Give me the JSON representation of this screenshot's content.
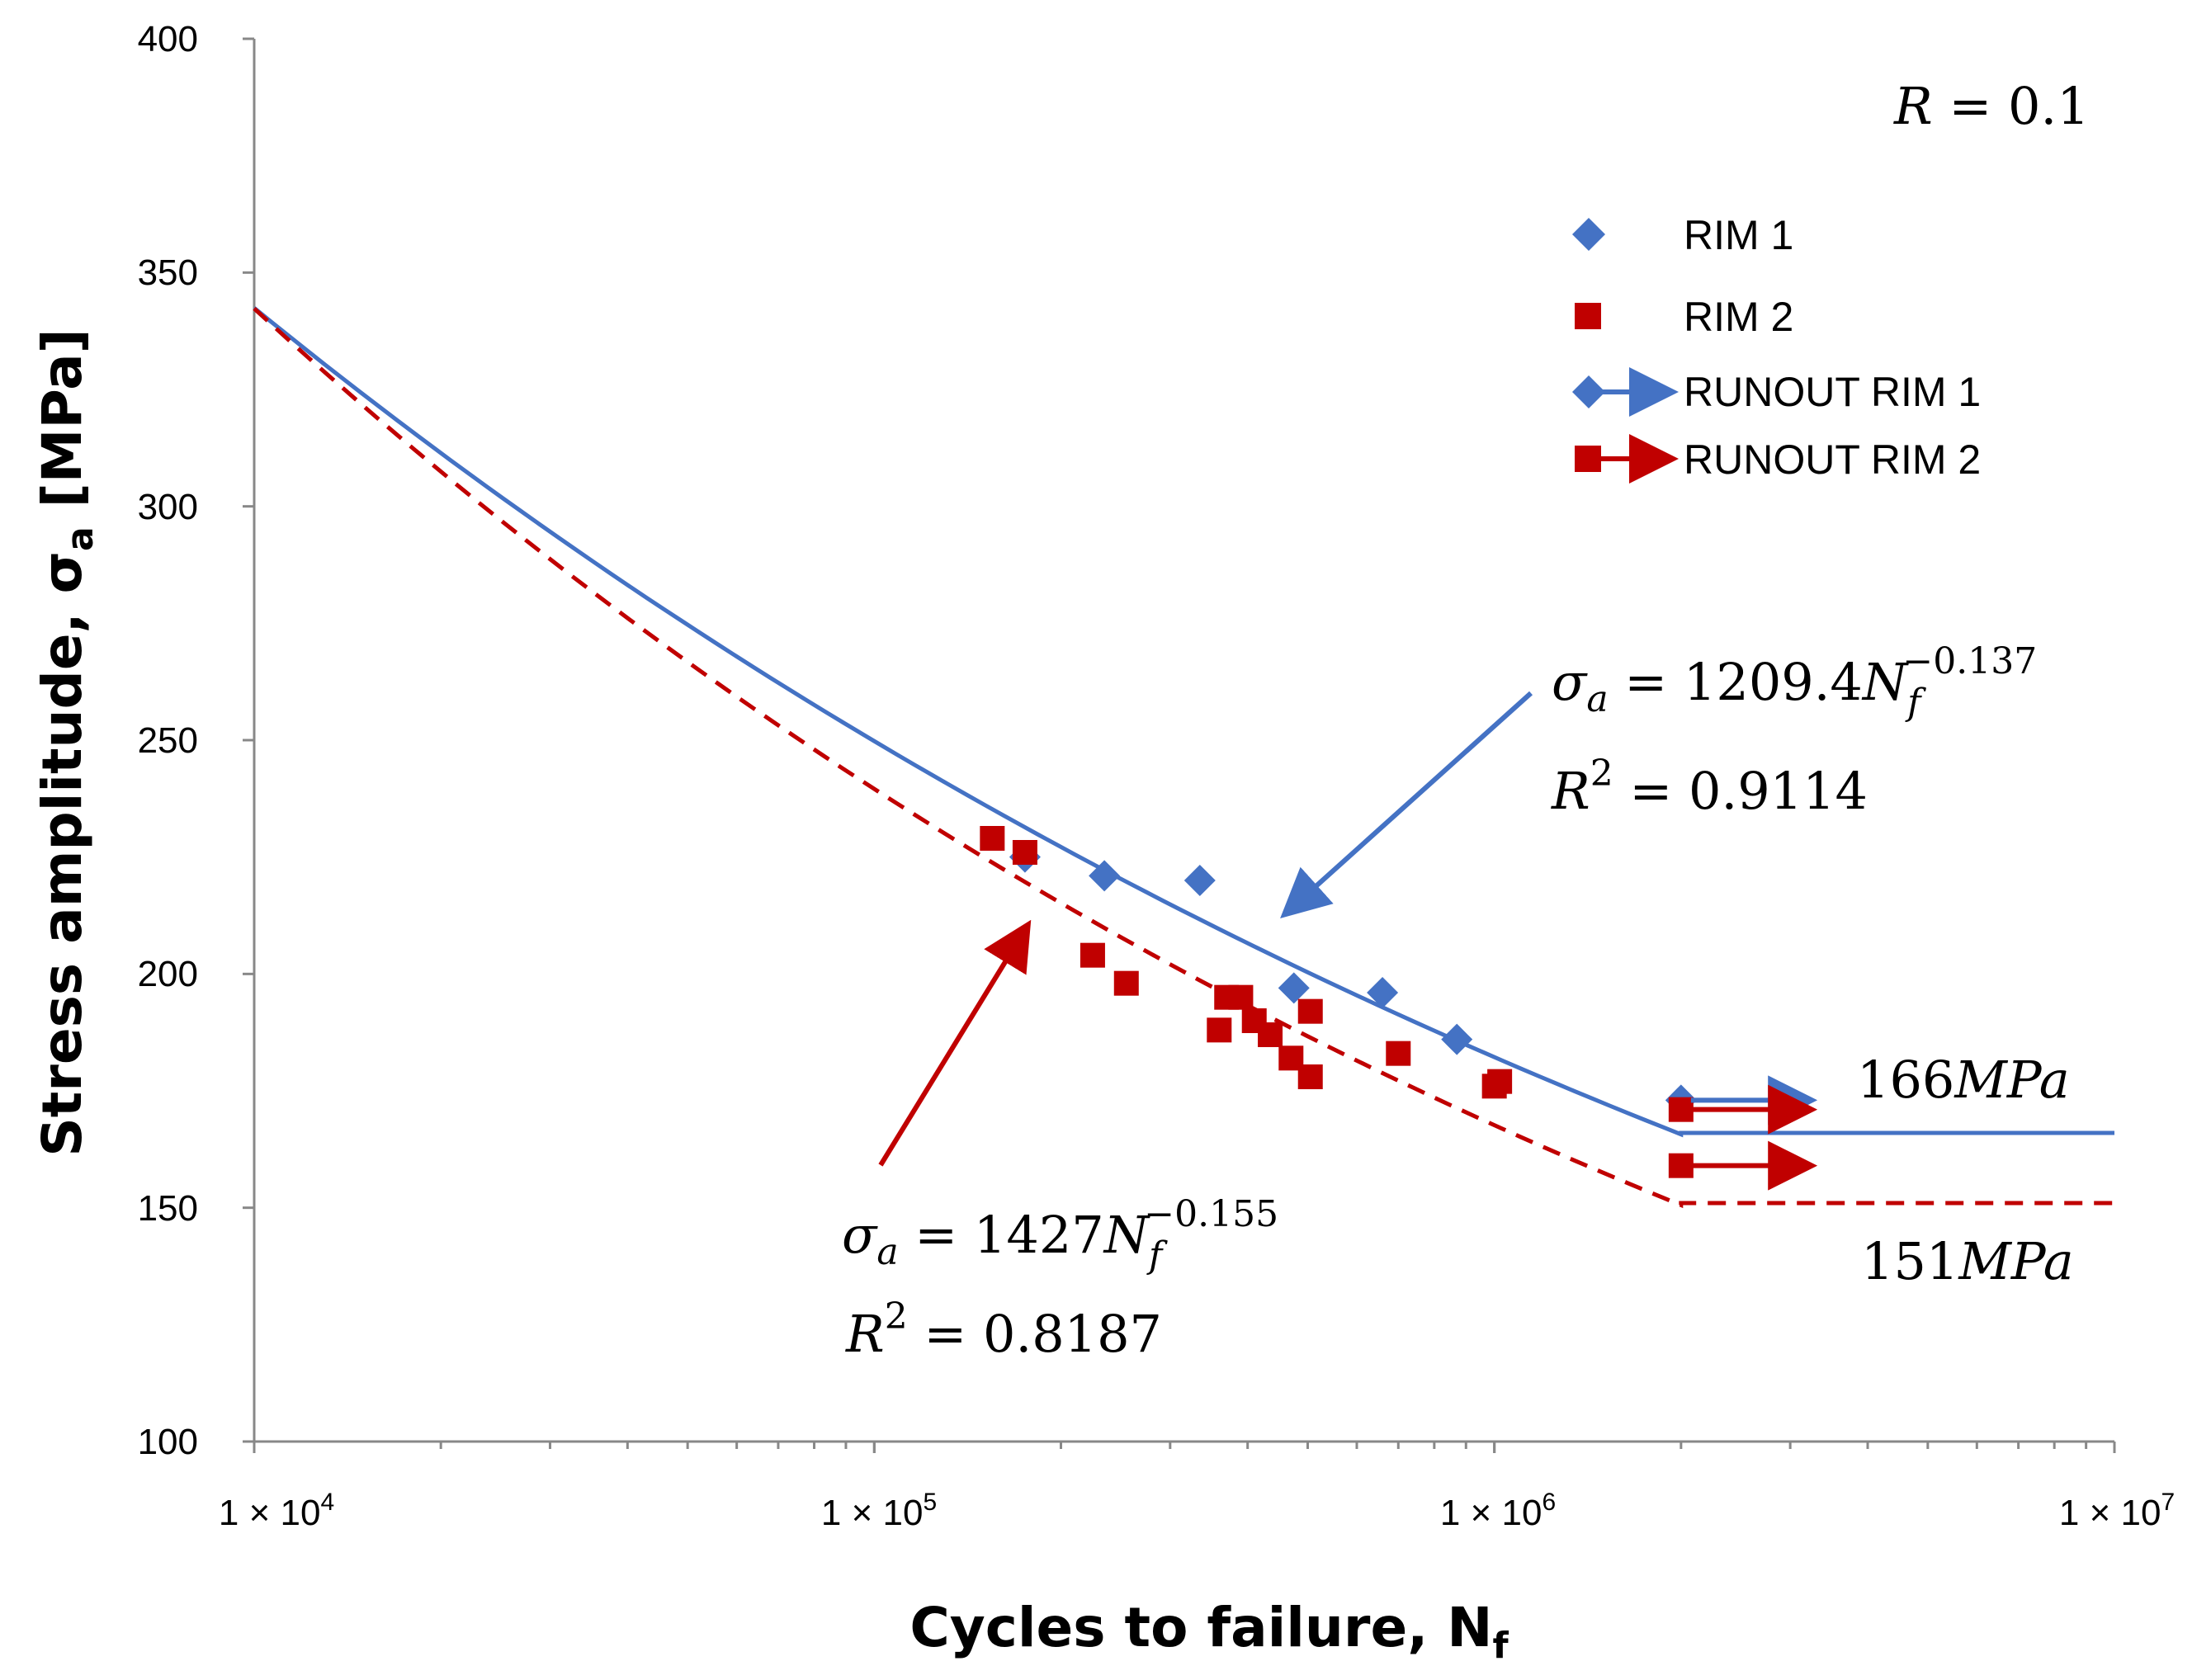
{
  "chart_data": {
    "type": "scatter",
    "xscale": "log",
    "xlim": [
      10000,
      10000000
    ],
    "ylim": [
      100,
      400
    ],
    "xlabel": "Cycles to failure, N",
    "xlabel_sub": "f",
    "ylabel": "Stress amplitude, σ",
    "ylabel_sub": "a",
    "ylabel_unit": " [MPa]",
    "yticks": [
      "100",
      "150",
      "200",
      "250",
      "300",
      "350",
      "400"
    ],
    "xticks": [
      {
        "base": "1 × 10",
        "exp": "4",
        "value": 10000
      },
      {
        "base": "1 × 10",
        "exp": "5",
        "value": 100000
      },
      {
        "base": "1 × 10",
        "exp": "6",
        "value": 1000000
      },
      {
        "base": "1 × 10",
        "exp": "7",
        "value": 10000000
      }
    ],
    "annotations": {
      "r_ratio": {
        "italic": "R",
        "rest": " = 0.1"
      },
      "eq_rim1": {
        "lhs": "σ",
        "lhs_sub": "a",
        "coef": " = 1209.4",
        "var": "N",
        "var_sub": "f",
        "exp": "−0.137"
      },
      "r2_rim1": {
        "lhs": "R",
        "sup": "2",
        "rest": " = 0.9114"
      },
      "eq_rim2": {
        "lhs": "σ",
        "lhs_sub": "a",
        "coef": " = 1427",
        "var": "N",
        "var_sub": "f",
        "exp": "−0.155"
      },
      "r2_rim2": {
        "lhs": "R",
        "sup": "2",
        "rest": " = 0.8187"
      },
      "limit_rim1": {
        "num": "166",
        "unit": "MPa"
      },
      "limit_rim2": {
        "num": "151",
        "unit": "MPa"
      }
    },
    "legend": [
      {
        "label": "RIM 1",
        "marker": "diamond",
        "color": "#4472C4"
      },
      {
        "label": "RIM 2",
        "marker": "square",
        "color": "#C00000"
      },
      {
        "label": "RUNOUT RIM 1",
        "marker": "diamond-arrow",
        "color": "#4472C4"
      },
      {
        "label": "RUNOUT RIM 2",
        "marker": "square-arrow",
        "color": "#C00000"
      }
    ],
    "series": [
      {
        "name": "RIM 1",
        "color": "#4472C4",
        "marker": "diamond",
        "points": [
          [
            175000,
            225
          ],
          [
            235000,
            221
          ],
          [
            335000,
            220
          ],
          [
            475000,
            197
          ],
          [
            660000,
            196
          ],
          [
            870000,
            186
          ],
          [
            2000000,
            173
          ]
        ]
      },
      {
        "name": "RIM 2",
        "color": "#C00000",
        "marker": "square",
        "points": [
          [
            155000,
            229
          ],
          [
            175000,
            226
          ],
          [
            225000,
            204
          ],
          [
            255000,
            198
          ],
          [
            360000,
            188
          ],
          [
            370000,
            195
          ],
          [
            390000,
            195
          ],
          [
            410000,
            190
          ],
          [
            435000,
            187
          ],
          [
            470000,
            182
          ],
          [
            505000,
            178
          ],
          [
            505000,
            192
          ],
          [
            700000,
            183
          ],
          [
            1000000,
            176
          ],
          [
            1020000,
            177
          ],
          [
            2000000,
            171
          ],
          [
            2000000,
            159
          ]
        ]
      },
      {
        "name": "RUNOUT RIM 1",
        "color": "#4472C4",
        "points": [
          [
            2000000,
            173
          ]
        ],
        "arrow_to": 3200000
      },
      {
        "name": "RUNOUT RIM 2",
        "color": "#C00000",
        "points": [
          [
            2000000,
            171
          ],
          [
            2000000,
            159
          ]
        ],
        "arrow_to": 3200000
      }
    ],
    "fits": [
      {
        "name": "RIM 1 fit",
        "color": "#4472C4",
        "style": "solid",
        "coef": 1209.4,
        "exp": -0.137,
        "knee": 2000000,
        "limit": 166
      },
      {
        "name": "RIM 2 fit",
        "color": "#C00000",
        "style": "dashed",
        "coef": 1427,
        "exp": -0.155,
        "knee": 2000000,
        "limit": 151
      }
    ]
  }
}
